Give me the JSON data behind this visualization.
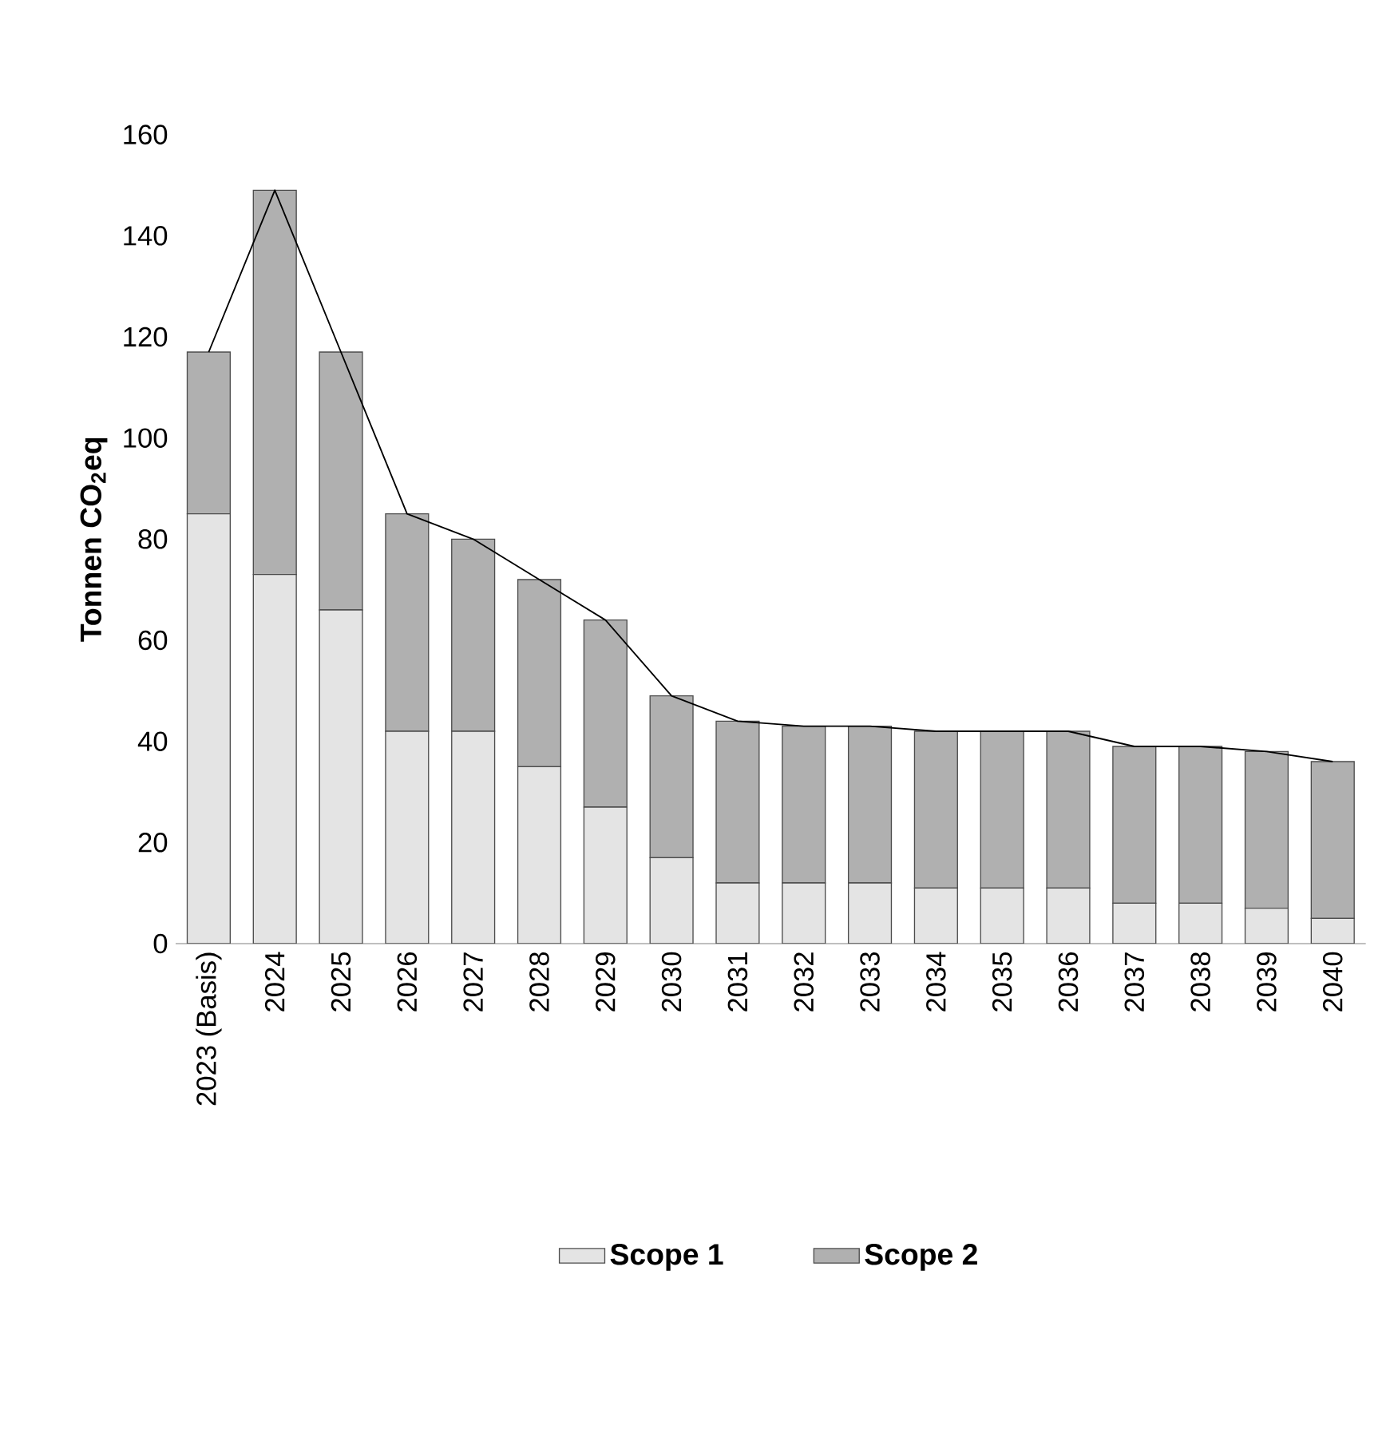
{
  "chart_data": {
    "type": "bar",
    "stacked": true,
    "ylabel": "Tonnen CO$_{2}$eq",
    "categories": [
      "2023 (Basis)",
      "2024",
      "2025",
      "2026",
      "2027",
      "2028",
      "2029",
      "2030",
      "2031",
      "2032",
      "2033",
      "2034",
      "2035",
      "2036",
      "2037",
      "2038",
      "2039",
      "2040"
    ],
    "series": [
      {
        "name": "Scope 1",
        "color": "#e4e4e4",
        "values": [
          85,
          73,
          66,
          42,
          42,
          35,
          27,
          17,
          12,
          12,
          12,
          11,
          11,
          11,
          8,
          8,
          7,
          5
        ]
      },
      {
        "name": "Scope 2",
        "color": "#b0b0b0",
        "values": [
          32,
          76,
          51,
          43,
          38,
          37,
          37,
          32,
          32,
          31,
          31,
          31,
          31,
          31,
          31,
          31,
          31,
          31
        ]
      },
      {
        "type": "line",
        "color": "#000000",
        "values": [
          117,
          149,
          117,
          85,
          80,
          72,
          64,
          49,
          44,
          43,
          43,
          42,
          42,
          42,
          39,
          39,
          38,
          36
        ]
      }
    ],
    "ylim": [
      0,
      160
    ],
    "yticks": [
      0,
      20,
      40,
      60,
      80,
      100,
      120,
      140,
      160
    ],
    "legend": "bottom"
  }
}
